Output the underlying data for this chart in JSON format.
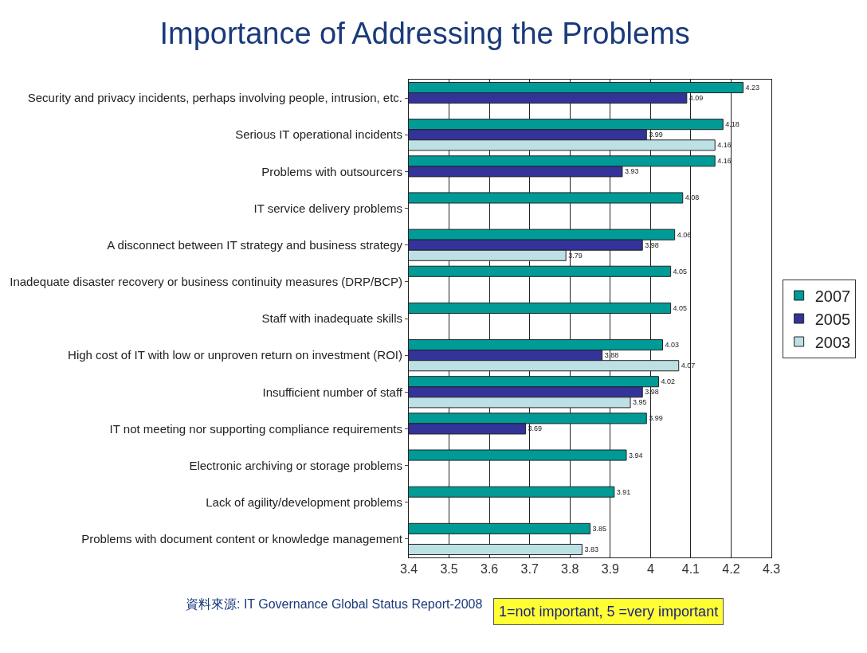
{
  "chart_data": {
    "type": "bar",
    "orientation": "horizontal",
    "title": "Importance of Addressing the Problems",
    "categories": [
      "Security and privacy incidents, perhaps involving people, intrusion, etc.",
      "Serious IT operational incidents",
      "Problems with outsourcers",
      "IT service delivery problems",
      "A disconnect between IT strategy and business strategy",
      "Inadequate disaster recovery or business continuity measures (DRP/BCP)",
      "Staff with inadequate skills",
      "High cost of IT with low or unproven return on investment (ROI)",
      "Insufficient number of staff",
      "IT not meeting nor supporting compliance requirements",
      "Electronic archiving or storage problems",
      "Lack of agility/development problems",
      "Problems with document content or knowledge management"
    ],
    "series": [
      {
        "name": "2007",
        "color": "#009b96",
        "values": [
          4.23,
          4.18,
          4.16,
          4.08,
          4.06,
          4.05,
          4.05,
          4.03,
          4.02,
          3.99,
          3.94,
          3.91,
          3.85
        ]
      },
      {
        "name": "2005",
        "color": "#333399",
        "values": [
          4.09,
          3.99,
          3.93,
          null,
          3.98,
          null,
          null,
          3.88,
          3.98,
          3.69,
          null,
          null,
          null
        ]
      },
      {
        "name": "2003",
        "color": "#bde0e4",
        "values": [
          null,
          4.16,
          null,
          null,
          3.79,
          null,
          null,
          4.07,
          3.95,
          null,
          null,
          null,
          3.83
        ]
      }
    ],
    "xlim": [
      3.4,
      4.3
    ],
    "xticks": [
      3.4,
      3.5,
      3.6,
      3.7,
      3.8,
      3.9,
      4,
      4.1,
      4.2,
      4.3
    ],
    "grid": "x",
    "legend": "right",
    "data_labels": true,
    "annotations": [
      "資料來源: IT Governance Global Status Report-2008",
      "1=not important, 5 =very important"
    ]
  }
}
